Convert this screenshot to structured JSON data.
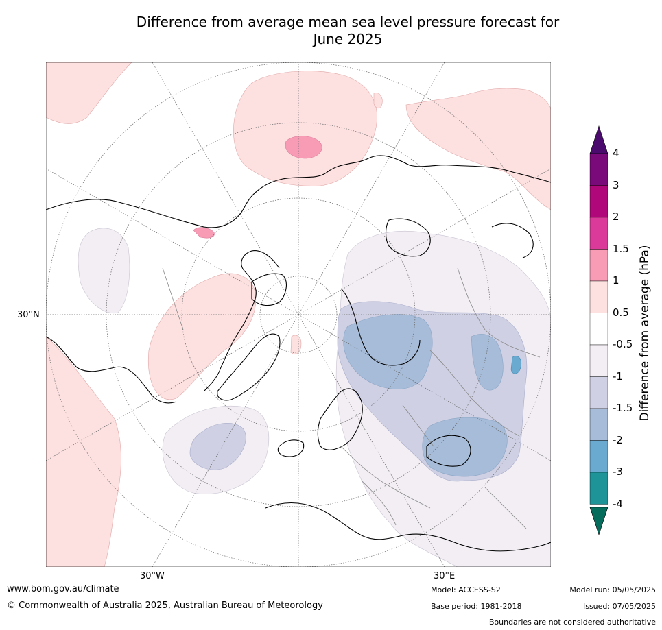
{
  "title_line1": "Difference from average mean sea level pressure forecast for",
  "title_line2": "June 2025",
  "axis_labels": {
    "lat_30n": "30°N",
    "lon_30w": "30°W",
    "lon_30e": "30°E"
  },
  "colorbar": {
    "title": "Difference from average (hPa)",
    "ticks": [
      "4",
      "3",
      "2",
      "1.5",
      "1",
      "0.5",
      "-0.5",
      "-1",
      "-1.5",
      "-2",
      "-3",
      "-4"
    ],
    "colors": {
      "over": "#4b0a6e",
      "b3_4": "#7a0a7a",
      "b2_3": "#b0087a",
      "b15_2": "#dc3a9a",
      "b1_15": "#f89cb6",
      "b05_1": "#fde0e0",
      "b_neutral": "#ffffff",
      "bn1_n05": "#f2eef4",
      "bn15_n1": "#cfd0e4",
      "bn2_n15": "#a6bcd8",
      "bn3_n2": "#6aaad0",
      "bn4_n3": "#1e9498",
      "under": "#066c5c"
    }
  },
  "footer": {
    "url": "www.bom.gov.au/climate",
    "copyright": "© Commonwealth of Australia 2025, Australian Bureau of Meteorology",
    "model": "Model: ACCESS-S2",
    "base_period": "Base period: 1981-2018",
    "model_run": "Model run: 05/05/2025",
    "issued": "Issued: 07/05/2025",
    "disclaimer": "Boundaries are not considered authoritative"
  }
}
